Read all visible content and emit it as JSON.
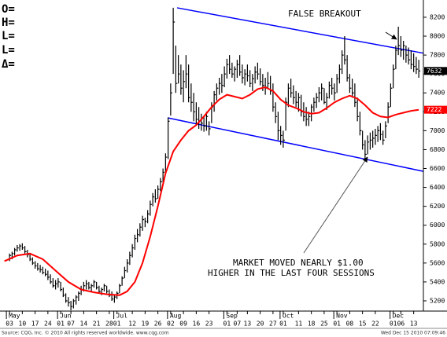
{
  "chart_data": {
    "type": "ohlc",
    "info_labels": [
      "O=",
      "H=",
      "L=",
      "L=",
      "Δ="
    ],
    "annotations": [
      "FALSE BREAKOUT",
      "MARKET MOVED NEARLY $1.00",
      "HIGHER IN THE LAST FOUR SESSIONS"
    ],
    "footer_left": "Source: CQG, Inc. © 2010 All rights reserved worldwide. www.cqg.com",
    "footer_right": "Wed Dec 15 2010 07:09:46",
    "bar_color": "#000000",
    "xlim": [
      -2.8,
      161.8
    ],
    "ylim": [
      5125,
      8341
    ],
    "yticks": [
      5200,
      5400,
      5600,
      5800,
      6000,
      6200,
      6400,
      6600,
      6800,
      7000,
      7200,
      7400,
      7600,
      7800,
      8000,
      8200
    ],
    "xmonths": [
      {
        "value": 0,
        "label": "May"
      },
      {
        "value": 20,
        "label": "Jun"
      },
      {
        "value": 42,
        "label": "Jul"
      },
      {
        "value": 63,
        "label": "Aug"
      },
      {
        "value": 85,
        "label": "Sep"
      },
      {
        "value": 107,
        "label": "Oct"
      },
      {
        "value": 128,
        "label": "Nov"
      },
      {
        "value": 150,
        "label": "Dec"
      }
    ],
    "xticks": [
      {
        "value": 0,
        "label": "03"
      },
      {
        "value": 5,
        "label": "10"
      },
      {
        "value": 10,
        "label": "17"
      },
      {
        "value": 15,
        "label": "24"
      },
      {
        "value": 20,
        "label": "01"
      },
      {
        "value": 24,
        "label": "07"
      },
      {
        "value": 29,
        "label": "14"
      },
      {
        "value": 34,
        "label": "21"
      },
      {
        "value": 39,
        "label": "28"
      },
      {
        "value": 42,
        "label": "01"
      },
      {
        "value": 48,
        "label": "12"
      },
      {
        "value": 53,
        "label": "19"
      },
      {
        "value": 58,
        "label": "26"
      },
      {
        "value": 63,
        "label": "02"
      },
      {
        "value": 68,
        "label": "09"
      },
      {
        "value": 73,
        "label": "16"
      },
      {
        "value": 78,
        "label": "23"
      },
      {
        "value": 85,
        "label": "01"
      },
      {
        "value": 89,
        "label": "07"
      },
      {
        "value": 93,
        "label": "13"
      },
      {
        "value": 98,
        "label": "20"
      },
      {
        "value": 103,
        "label": "27"
      },
      {
        "value": 107,
        "label": "01"
      },
      {
        "value": 113,
        "label": "11"
      },
      {
        "value": 118,
        "label": "18"
      },
      {
        "value": 123,
        "label": "25"
      },
      {
        "value": 128,
        "label": "01"
      },
      {
        "value": 133,
        "label": "08"
      },
      {
        "value": 138,
        "label": "15"
      },
      {
        "value": 143,
        "label": "22"
      },
      {
        "value": 150,
        "label": "01"
      },
      {
        "value": 153,
        "label": "06"
      },
      {
        "value": 158,
        "label": "13"
      }
    ],
    "x": [
      0,
      1,
      2,
      3,
      4,
      5,
      6,
      7,
      8,
      9,
      10,
      11,
      12,
      13,
      14,
      15,
      16,
      17,
      18,
      19,
      20,
      21,
      22,
      23,
      24,
      25,
      26,
      27,
      28,
      29,
      30,
      31,
      32,
      33,
      34,
      35,
      36,
      37,
      38,
      39,
      40,
      41,
      42,
      43,
      44,
      45,
      46,
      47,
      48,
      49,
      50,
      51,
      52,
      53,
      54,
      55,
      56,
      57,
      58,
      59,
      60,
      61,
      62,
      63,
      64,
      65,
      66,
      67,
      68,
      69,
      70,
      71,
      72,
      73,
      74,
      75,
      76,
      77,
      78,
      79,
      80,
      81,
      82,
      83,
      84,
      85,
      86,
      87,
      88,
      89,
      90,
      91,
      92,
      93,
      94,
      95,
      96,
      97,
      98,
      99,
      100,
      101,
      102,
      103,
      104,
      105,
      106,
      107,
      108,
      109,
      110,
      111,
      112,
      113,
      114,
      115,
      116,
      117,
      118,
      119,
      120,
      121,
      122,
      123,
      124,
      125,
      126,
      127,
      128,
      129,
      130,
      131,
      132,
      133,
      134,
      135,
      136,
      137,
      138,
      139,
      140,
      141,
      142,
      143,
      144,
      145,
      146,
      147,
      148,
      149,
      150,
      151,
      152,
      153,
      154,
      155,
      156,
      157,
      158,
      159,
      160
    ],
    "high": [
      5700,
      5720,
      5760,
      5790,
      5800,
      5810,
      5780,
      5740,
      5700,
      5660,
      5620,
      5600,
      5580,
      5560,
      5540,
      5520,
      5480,
      5440,
      5420,
      5440,
      5400,
      5340,
      5280,
      5240,
      5200,
      5220,
      5260,
      5300,
      5360,
      5400,
      5420,
      5400,
      5380,
      5420,
      5400,
      5360,
      5340,
      5380,
      5360,
      5320,
      5300,
      5260,
      5300,
      5380,
      5460,
      5560,
      5640,
      5720,
      5800,
      5900,
      5960,
      6020,
      6100,
      6080,
      6160,
      6260,
      6340,
      6380,
      6420,
      6500,
      6600,
      6760,
      7140,
      7500,
      8300,
      7900,
      7800,
      7700,
      7640,
      7800,
      7700,
      7500,
      7400,
      7300,
      7250,
      7180,
      7160,
      7200,
      7100,
      7300,
      7420,
      7500,
      7560,
      7600,
      7680,
      7760,
      7800,
      7720,
      7680,
      7750,
      7800,
      7700,
      7650,
      7700,
      7640,
      7600,
      7680,
      7720,
      7660,
      7600,
      7560,
      7620,
      7580,
      7500,
      7300,
      7200,
      7050,
      7000,
      7350,
      7500,
      7550,
      7480,
      7420,
      7400,
      7380,
      7300,
      7250,
      7200,
      7280,
      7350,
      7400,
      7460,
      7500,
      7450,
      7400,
      7520,
      7560,
      7500,
      7600,
      7700,
      7850,
      8000,
      7800,
      7600,
      7550,
      7500,
      7350,
      7200,
      7000,
      6900,
      6950,
      6980,
      7000,
      7020,
      7050,
      7080,
      7000,
      7100,
      7300,
      7500,
      7700,
      7900,
      8100,
      8000,
      7950,
      7900,
      7880,
      7850,
      7820,
      7780,
      7750
    ],
    "low": [
      5620,
      5640,
      5680,
      5720,
      5730,
      5740,
      5700,
      5660,
      5620,
      5580,
      5540,
      5520,
      5500,
      5480,
      5460,
      5420,
      5380,
      5340,
      5320,
      5340,
      5300,
      5240,
      5180,
      5140,
      5100,
      5120,
      5160,
      5200,
      5260,
      5300,
      5320,
      5320,
      5300,
      5340,
      5320,
      5280,
      5260,
      5300,
      5280,
      5240,
      5200,
      5180,
      5220,
      5280,
      5360,
      5440,
      5500,
      5580,
      5660,
      5740,
      5820,
      5880,
      5940,
      5980,
      6020,
      6100,
      6200,
      6240,
      6280,
      6360,
      6440,
      6560,
      6700,
      7160,
      7600,
      7400,
      7500,
      7380,
      7300,
      7450,
      7300,
      7200,
      7100,
      7060,
      7020,
      7000,
      6990,
      7000,
      6950,
      7080,
      7200,
      7320,
      7380,
      7400,
      7460,
      7550,
      7600,
      7560,
      7520,
      7560,
      7580,
      7500,
      7480,
      7520,
      7460,
      7420,
      7500,
      7540,
      7480,
      7420,
      7380,
      7440,
      7380,
      7200,
      7080,
      6900,
      6850,
      6820,
      7000,
      7250,
      7350,
      7280,
      7250,
      7200,
      7150,
      7100,
      7050,
      7050,
      7100,
      7200,
      7240,
      7300,
      7320,
      7280,
      7220,
      7340,
      7380,
      7320,
      7400,
      7500,
      7600,
      7700,
      7520,
      7400,
      7350,
      7250,
      7100,
      6950,
      6800,
      6680,
      6750,
      6800,
      6820,
      6850,
      6880,
      6900,
      6850,
      6920,
      7080,
      7250,
      7450,
      7650,
      7800,
      7780,
      7750,
      7720,
      7700,
      7650,
      7620,
      7600,
      7560
    ],
    "close": [
      5680,
      5700,
      5740,
      5760,
      5780,
      5760,
      5720,
      5690,
      5640,
      5600,
      5570,
      5540,
      5530,
      5500,
      5480,
      5450,
      5400,
      5360,
      5380,
      5400,
      5320,
      5260,
      5200,
      5180,
      5140,
      5200,
      5240,
      5280,
      5320,
      5360,
      5380,
      5340,
      5360,
      5400,
      5340,
      5300,
      5320,
      5360,
      5300,
      5260,
      5220,
      5240,
      5280,
      5360,
      5440,
      5520,
      5600,
      5680,
      5760,
      5860,
      5900,
      5980,
      6060,
      6040,
      6120,
      6220,
      6300,
      6280,
      6380,
      6460,
      6560,
      6720,
      7100,
      7400,
      8150,
      7500,
      7600,
      7450,
      7520,
      7600,
      7350,
      7300,
      7200,
      7120,
      7100,
      7080,
      7050,
      7150,
      7020,
      7250,
      7380,
      7450,
      7500,
      7480,
      7600,
      7700,
      7650,
      7600,
      7650,
      7700,
      7620,
      7560,
      7600,
      7580,
      7500,
      7550,
      7620,
      7600,
      7520,
      7480,
      7460,
      7500,
      7420,
      7250,
      7150,
      7000,
      6950,
      6900,
      7300,
      7450,
      7400,
      7350,
      7300,
      7350,
      7200,
      7150,
      7120,
      7150,
      7250,
      7300,
      7350,
      7400,
      7450,
      7300,
      7350,
      7480,
      7450,
      7400,
      7550,
      7650,
      7800,
      7750,
      7560,
      7450,
      7400,
      7300,
      7150,
      7000,
      6850,
      6750,
      6880,
      6900,
      6920,
      6950,
      7000,
      6960,
      6900,
      7050,
      7250,
      7450,
      7650,
      7850,
      7900,
      7850,
      7900,
      7800,
      7750,
      7700,
      7680,
      7650,
      7632
    ],
    "ma": {
      "color": "#ff0000",
      "x": [
        -2,
        3,
        8,
        13,
        18,
        23,
        28,
        33,
        38,
        43,
        46,
        49,
        52,
        55,
        58,
        61,
        64,
        67,
        70,
        73,
        76,
        79,
        82,
        85,
        88,
        91,
        94,
        97,
        100,
        103,
        106,
        109,
        112,
        115,
        118,
        121,
        124,
        127,
        130,
        133,
        136,
        139,
        142,
        145,
        148,
        151,
        154,
        157,
        160
      ],
      "values": [
        5620,
        5680,
        5700,
        5640,
        5520,
        5400,
        5320,
        5290,
        5270,
        5260,
        5300,
        5400,
        5600,
        5880,
        6200,
        6550,
        6780,
        6900,
        7000,
        7060,
        7150,
        7250,
        7330,
        7380,
        7360,
        7340,
        7380,
        7440,
        7460,
        7420,
        7330,
        7270,
        7240,
        7200,
        7180,
        7190,
        7240,
        7300,
        7340,
        7370,
        7340,
        7270,
        7190,
        7150,
        7140,
        7170,
        7190,
        7210,
        7222
      ]
    },
    "trendlines": [
      {
        "color": "#0000ff",
        "x": [
          65.5,
          161.8
        ],
        "y": [
          8300,
          7820
        ]
      },
      {
        "color": "#0000ff",
        "x": [
          61.8,
          161.8
        ],
        "y": [
          7136,
          6570
        ]
      }
    ],
    "price_markers": [
      {
        "value": 7632,
        "label": "7632",
        "color": "#000000"
      },
      {
        "value": 7222,
        "label": "7222",
        "color": "#ff0000"
      }
    ]
  }
}
